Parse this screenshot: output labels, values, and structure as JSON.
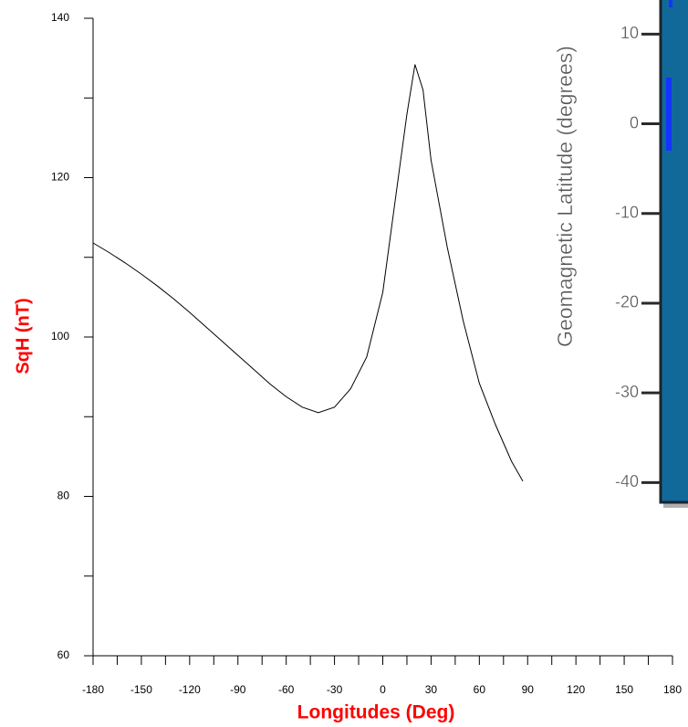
{
  "chart_data": [
    {
      "type": "line",
      "xlabel": "Longitudes (Deg)",
      "ylabel": "SqH (nT)",
      "color": "#000000",
      "x": [
        -180,
        -170,
        -160,
        -150,
        -140,
        -130,
        -120,
        -110,
        -100,
        -90,
        -80,
        -70,
        -60,
        -50,
        -40,
        -30,
        -20,
        -10,
        0,
        10,
        15,
        20,
        25,
        30,
        40,
        50,
        60,
        70,
        80,
        87
      ],
      "values": [
        111.8,
        110.6,
        109.3,
        107.9,
        106.4,
        104.8,
        103.1,
        101.3,
        99.5,
        97.7,
        95.9,
        94.1,
        92.5,
        91.2,
        90.5,
        91.2,
        93.5,
        97.5,
        105.6,
        120.5,
        128,
        134.2,
        131,
        122.2,
        111.3,
        102,
        94.2,
        89,
        84.4,
        81.9
      ],
      "xlim": [
        -180,
        180
      ],
      "xticks": [
        -180,
        -150,
        -120,
        -90,
        -60,
        -30,
        0,
        30,
        60,
        90,
        120,
        150,
        180
      ],
      "xminorticks": [
        -165,
        -135,
        -105,
        -75,
        -45,
        -15,
        15,
        45,
        75,
        105,
        135,
        165
      ],
      "ylim": [
        60,
        140
      ],
      "yticks": [
        60,
        80,
        100,
        120,
        140
      ],
      "yminorticks": [
        70,
        90,
        110,
        130
      ]
    },
    {
      "type": "map",
      "ylabel": "Geomagnetic Latitude (degrees)",
      "color": "#11699a",
      "ylim": [
        -42.2,
        13.8
      ],
      "yticks": [
        10,
        0,
        -10,
        -20,
        -30,
        -40
      ]
    }
  ]
}
